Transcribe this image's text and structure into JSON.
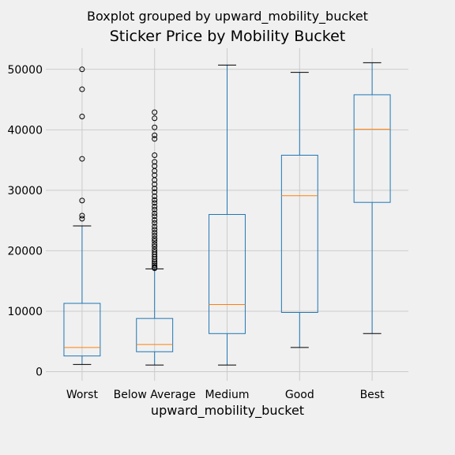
{
  "chart_data": {
    "type": "boxplot",
    "suptitle": "Boxplot grouped by upward_mobility_bucket",
    "title": "Sticker Price by Mobility Bucket",
    "xlabel": "upward_mobility_bucket",
    "ylabel": "",
    "ylim": [
      -1500,
      53500
    ],
    "yticks": [
      0,
      10000,
      20000,
      30000,
      40000,
      50000
    ],
    "grid": true,
    "categories": [
      "Worst",
      "Below Average",
      "Medium",
      "Good",
      "Best"
    ],
    "boxes": [
      {
        "category": "Worst",
        "whisker_low": 1200,
        "q1": 2600,
        "median": 4000,
        "q3": 11300,
        "whisker_high": 24100,
        "outliers": [
          25300,
          25800,
          28300,
          35200,
          42200,
          46700,
          50000
        ]
      },
      {
        "category": "Below Average",
        "whisker_low": 1100,
        "q1": 3300,
        "median": 4500,
        "q3": 8800,
        "whisker_high": 17000,
        "outliers": [
          17100,
          17300,
          17600,
          17900,
          18200,
          18600,
          19000,
          19400,
          19800,
          20200,
          20700,
          21100,
          21600,
          22000,
          22500,
          23000,
          23500,
          24000,
          24600,
          25100,
          25700,
          26200,
          26800,
          27300,
          27900,
          28400,
          29000,
          29700,
          30300,
          31000,
          31700,
          32500,
          33200,
          34000,
          34700,
          35800,
          38500,
          39100,
          40400,
          41900,
          42900
        ]
      },
      {
        "category": "Medium",
        "whisker_low": 1100,
        "q1": 6300,
        "median": 11100,
        "q3": 26000,
        "whisker_high": 50700,
        "outliers": []
      },
      {
        "category": "Good",
        "whisker_low": 4000,
        "q1": 9800,
        "median": 29100,
        "q3": 35800,
        "whisker_high": 49500,
        "outliers": []
      },
      {
        "category": "Best",
        "whisker_low": 6300,
        "q1": 28000,
        "median": 40100,
        "q3": 45800,
        "whisker_high": 51100,
        "outliers": []
      }
    ],
    "colors": {
      "box": "#1f77b4",
      "whisker": "#1f77b4",
      "cap": "#000000",
      "median": "#ff7f0e",
      "outlier": "#000000",
      "grid": "#cbcbcb",
      "background": "#f0f0f0"
    }
  }
}
